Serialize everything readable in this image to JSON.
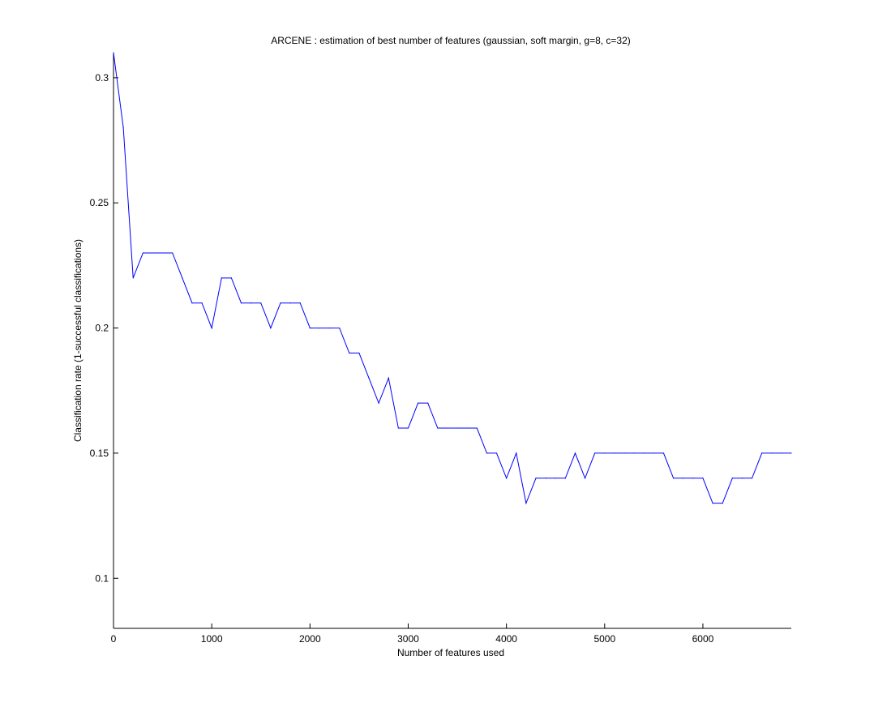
{
  "chart_data": {
    "type": "line",
    "title": "ARCENE : estimation of best number of features (gaussian, soft margin, g=8, c=32)",
    "xlabel": "Number of features used",
    "ylabel": "Classification rate (1-successful classifications)",
    "xlim": [
      0,
      6900
    ],
    "ylim": [
      0.08,
      0.31
    ],
    "xticks": [
      0,
      1000,
      2000,
      3000,
      4000,
      5000,
      6000
    ],
    "xtick_labels": [
      "0",
      "1000",
      "2000",
      "3000",
      "4000",
      "5000",
      "6000"
    ],
    "yticks": [
      0.1,
      0.15,
      0.2,
      0.25,
      0.3
    ],
    "ytick_labels": [
      "0.1",
      "0.15",
      "0.2",
      "0.25",
      "0.3"
    ],
    "grid": false,
    "line_color": "#0000ff",
    "series": [
      {
        "x": [
          0,
          100,
          200,
          300,
          400,
          500,
          600,
          700,
          800,
          900,
          1000,
          1100,
          1200,
          1300,
          1400,
          1500,
          1600,
          1700,
          1800,
          1900,
          2000,
          2100,
          2200,
          2300,
          2400,
          2500,
          2600,
          2700,
          2800,
          2900,
          3000,
          3100,
          3200,
          3300,
          3400,
          3500,
          3600,
          3700,
          3800,
          3900,
          4000,
          4100,
          4200,
          4300,
          4400,
          4500,
          4600,
          4700,
          4800,
          4900,
          5000,
          5100,
          5200,
          5300,
          5400,
          5500,
          5600,
          5700,
          5800,
          5900,
          6000,
          6100,
          6200,
          6300,
          6400,
          6500,
          6600,
          6700,
          6800,
          6900
        ],
        "y": [
          0.31,
          0.28,
          0.22,
          0.23,
          0.23,
          0.23,
          0.23,
          0.22,
          0.21,
          0.21,
          0.2,
          0.22,
          0.22,
          0.21,
          0.21,
          0.21,
          0.2,
          0.21,
          0.21,
          0.21,
          0.2,
          0.2,
          0.2,
          0.2,
          0.19,
          0.19,
          0.18,
          0.17,
          0.18,
          0.16,
          0.16,
          0.17,
          0.17,
          0.16,
          0.16,
          0.16,
          0.16,
          0.16,
          0.15,
          0.15,
          0.14,
          0.15,
          0.13,
          0.14,
          0.14,
          0.14,
          0.14,
          0.15,
          0.14,
          0.15,
          0.15,
          0.15,
          0.15,
          0.15,
          0.15,
          0.15,
          0.15,
          0.14,
          0.14,
          0.14,
          0.14,
          0.13,
          0.13,
          0.14,
          0.14,
          0.14,
          0.15,
          0.15,
          0.15,
          0.15
        ]
      }
    ]
  }
}
